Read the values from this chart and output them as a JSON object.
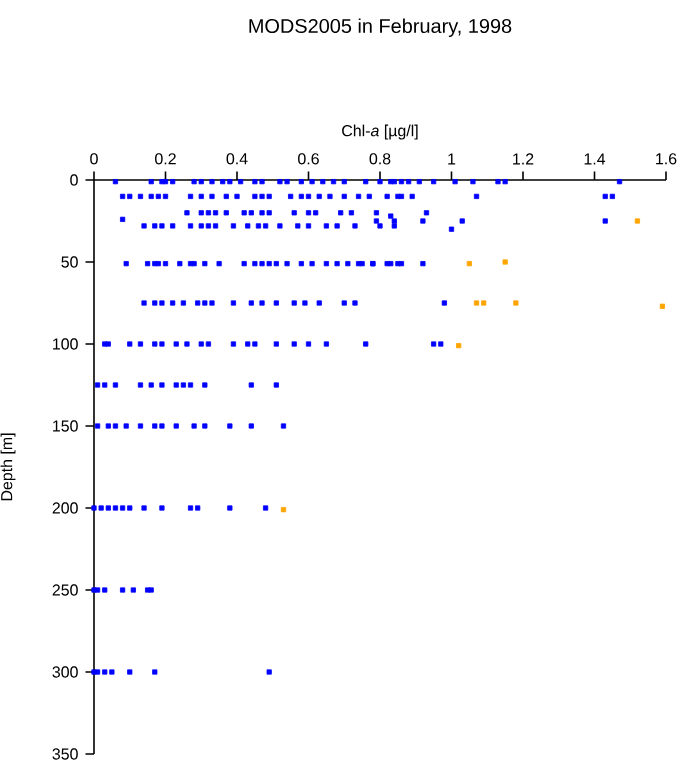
{
  "chart_data": {
    "type": "scatter",
    "title": "MODS2005 in February, 1998",
    "xlabel": "Chl-*a* [µg/l]",
    "ylabel": "Depth [m]",
    "xlim": [
      0,
      1.6
    ],
    "xticks": [
      0,
      0.2,
      0.4,
      0.6,
      0.8,
      1,
      1.2,
      1.4,
      1.6
    ],
    "ylim": [
      350,
      0
    ],
    "yticks": [
      0,
      50,
      100,
      150,
      200,
      250,
      300,
      350
    ],
    "marker": "square",
    "series": [
      {
        "color": "#0000ff",
        "x": [
          0.06,
          0.16,
          0.19,
          0.2,
          0.22,
          0.28,
          0.3,
          0.33,
          0.36,
          0.38,
          0.41,
          0.45,
          0.47,
          0.52,
          0.54,
          0.58,
          0.61,
          0.64,
          0.67,
          0.7,
          0.76,
          0.8,
          0.84,
          0.83,
          0.86,
          0.88,
          0.91,
          0.95,
          1.01,
          1.06,
          1.13,
          1.15,
          1.47,
          0.08,
          0.1,
          0.13,
          0.16,
          0.18,
          0.2,
          0.27,
          0.3,
          0.33,
          0.37,
          0.4,
          0.45,
          0.47,
          0.49,
          0.55,
          0.58,
          0.6,
          0.63,
          0.66,
          0.7,
          0.74,
          0.77,
          0.82,
          0.85,
          0.86,
          0.89,
          1.07,
          1.43,
          1.45,
          0.26,
          0.3,
          0.32,
          0.34,
          0.37,
          0.42,
          0.44,
          0.47,
          0.49,
          0.56,
          0.6,
          0.62,
          0.69,
          0.72,
          0.79,
          0.93,
          0.08,
          0.83,
          0.79,
          0.84,
          0.92,
          1.03,
          1.43,
          0.14,
          0.17,
          0.19,
          0.22,
          0.27,
          0.3,
          0.32,
          0.34,
          0.39,
          0.43,
          0.46,
          0.48,
          0.52,
          0.57,
          0.6,
          0.65,
          0.68,
          0.73,
          0.8,
          0.84,
          1.0,
          0.09,
          0.15,
          0.17,
          0.18,
          0.2,
          0.24,
          0.27,
          0.28,
          0.31,
          0.35,
          0.42,
          0.45,
          0.47,
          0.49,
          0.51,
          0.54,
          0.58,
          0.61,
          0.65,
          0.68,
          0.71,
          0.74,
          0.78,
          0.83,
          0.75,
          0.78,
          0.82,
          0.85,
          0.86,
          0.92,
          0.14,
          0.17,
          0.19,
          0.22,
          0.25,
          0.29,
          0.31,
          0.33,
          0.39,
          0.44,
          0.47,
          0.51,
          0.56,
          0.59,
          0.63,
          0.7,
          0.73,
          0.98,
          0.03,
          0.04,
          0.1,
          0.13,
          0.17,
          0.19,
          0.23,
          0.26,
          0.3,
          0.32,
          0.39,
          0.43,
          0.45,
          0.51,
          0.56,
          0.6,
          0.65,
          0.76,
          0.95,
          0.97,
          0.01,
          0.03,
          0.06,
          0.13,
          0.16,
          0.19,
          0.23,
          0.25,
          0.27,
          0.31,
          0.44,
          0.51,
          0.01,
          0.04,
          0.06,
          0.09,
          0.13,
          0.17,
          0.19,
          0.23,
          0.28,
          0.31,
          0.38,
          0.44,
          0.53,
          0.0,
          0.02,
          0.04,
          0.06,
          0.08,
          0.1,
          0.14,
          0.19,
          0.27,
          0.29,
          0.38,
          0.48,
          0.0,
          0.01,
          0.03,
          0.08,
          0.11,
          0.15,
          0.16,
          0.0,
          0.01,
          0.03,
          0.05,
          0.1,
          0.17,
          0.49
        ],
        "values": [
          1,
          1,
          1,
          1,
          1,
          1,
          1,
          1,
          1,
          1,
          1,
          1,
          1,
          1,
          1,
          1,
          1,
          1,
          1,
          1,
          1,
          1,
          1,
          1,
          1,
          1,
          1,
          1,
          1,
          1,
          1,
          1,
          1,
          10,
          10,
          10,
          10,
          10,
          10,
          10,
          10,
          10,
          10,
          10,
          10,
          10,
          10,
          10,
          10,
          10,
          10,
          10,
          10,
          10,
          10,
          10,
          10,
          10,
          10,
          10,
          10,
          10,
          20,
          20,
          20,
          20,
          20,
          20,
          20,
          20,
          20,
          20,
          20,
          20,
          20,
          20,
          20,
          20,
          24,
          22,
          25,
          25,
          25,
          25,
          25,
          28,
          28,
          28,
          28,
          28,
          28,
          28,
          28,
          28,
          28,
          28,
          28,
          28,
          28,
          28,
          28,
          28,
          28,
          28,
          28,
          30,
          51,
          51,
          51,
          51,
          51,
          51,
          51,
          51,
          51,
          51,
          51,
          51,
          51,
          51,
          51,
          51,
          51,
          51,
          51,
          51,
          51,
          51,
          51,
          51,
          51,
          51,
          51,
          51,
          51,
          51,
          75,
          75,
          75,
          75,
          75,
          75,
          75,
          75,
          75,
          75,
          75,
          75,
          75,
          75,
          75,
          75,
          75,
          75,
          100,
          100,
          100,
          100,
          100,
          100,
          100,
          100,
          100,
          100,
          100,
          100,
          100,
          100,
          100,
          100,
          100,
          100,
          100,
          100,
          125,
          125,
          125,
          125,
          125,
          125,
          125,
          125,
          125,
          125,
          125,
          125,
          150,
          150,
          150,
          150,
          150,
          150,
          150,
          150,
          150,
          150,
          150,
          150,
          150,
          200,
          200,
          200,
          200,
          200,
          200,
          200,
          200,
          200,
          200,
          200,
          200,
          250,
          250,
          250,
          250,
          250,
          250,
          250,
          300,
          300,
          300,
          300,
          300,
          300,
          300
        ]
      },
      {
        "color": "#ffa500",
        "x": [
          1.52,
          1.05,
          1.15,
          1.07,
          1.09,
          1.18,
          1.59,
          1.02,
          0.53
        ],
        "values": [
          25,
          51,
          50,
          75,
          75,
          75,
          77,
          101,
          201
        ]
      }
    ]
  }
}
